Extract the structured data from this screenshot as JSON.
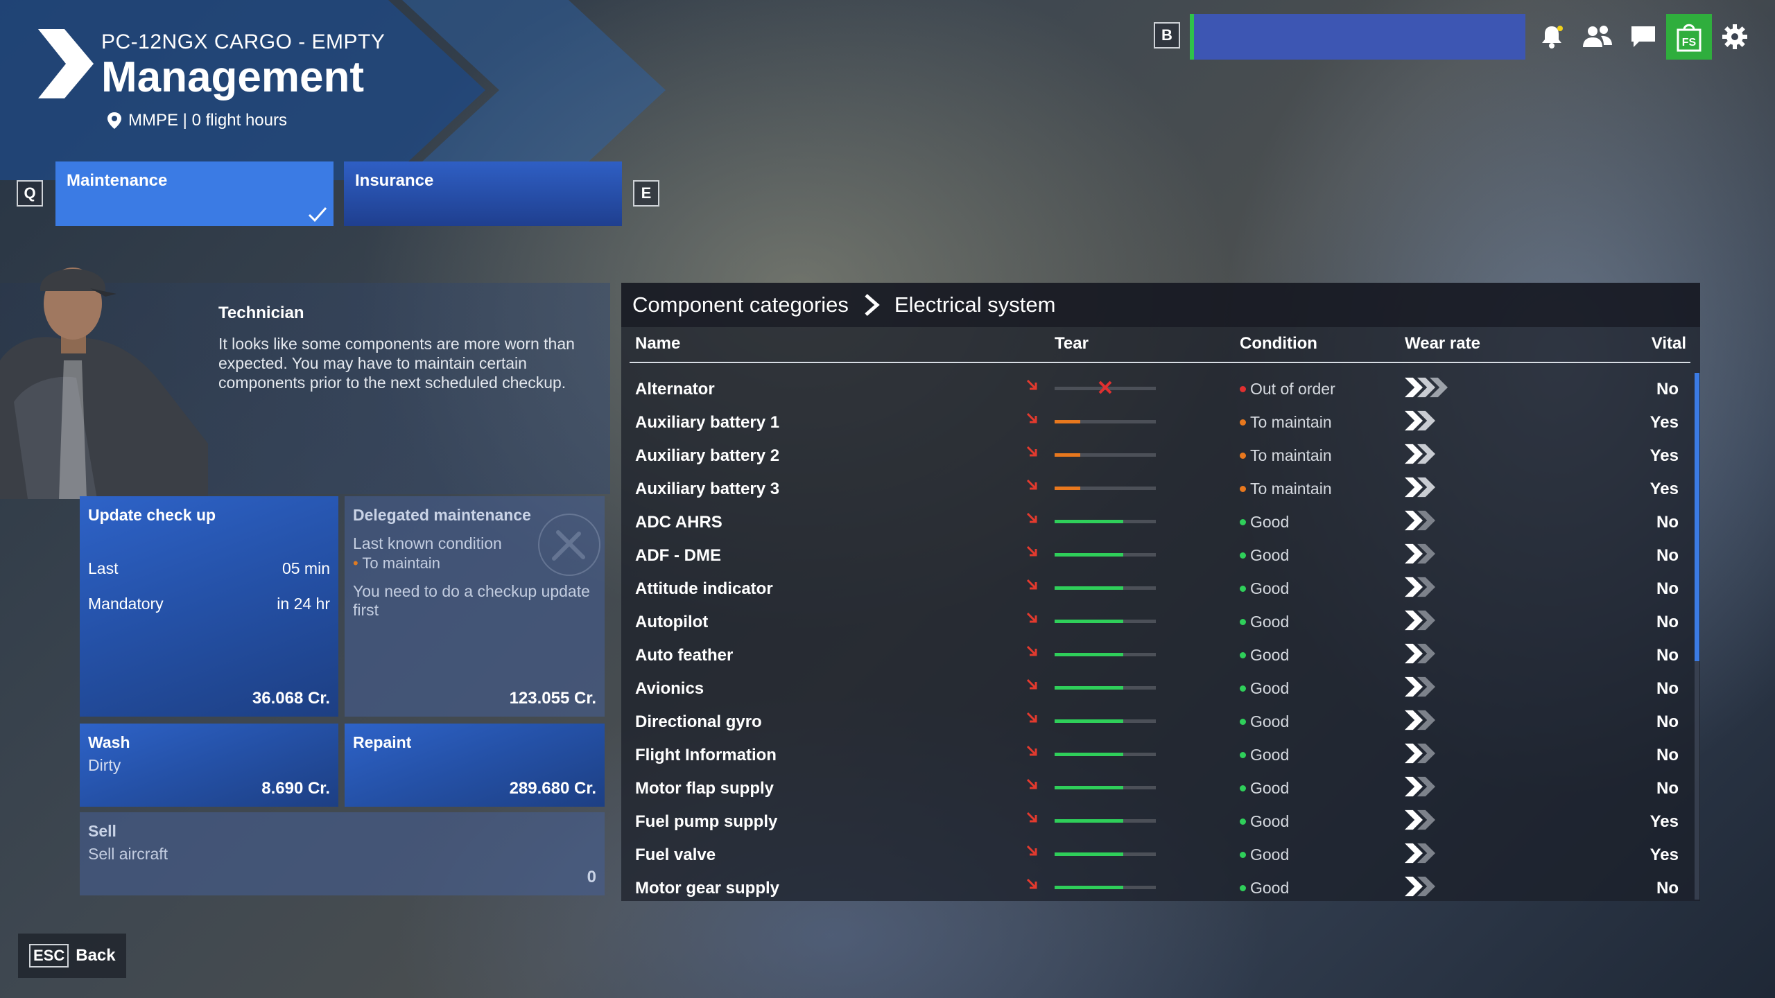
{
  "header": {
    "aircraft": "PC-12NGX CARGO - EMPTY",
    "title": "Management",
    "location": "MMPE | 0 flight hours"
  },
  "topbar": {
    "profile_key": "B",
    "icons": [
      "notification-bell-icon",
      "friends-icon",
      "chat-icon",
      "marketplace-icon",
      "settings-icon"
    ],
    "accent": "#3d56b3",
    "status_color": "#2fc24a"
  },
  "tabs": {
    "prev_key": "Q",
    "next_key": "E",
    "items": [
      {
        "label": "Maintenance",
        "active": true
      },
      {
        "label": "Insurance",
        "active": false
      }
    ]
  },
  "technician": {
    "name": "Technician",
    "message": "It looks like some components are more worn than expected. You may have to maintain certain components prior to the next scheduled checkup."
  },
  "cards": {
    "checkup": {
      "title": "Update check up",
      "last_label": "Last",
      "last_value": "05 min",
      "mandatory_label": "Mandatory",
      "mandatory_value": "in 24 hr",
      "price": "36.068 Cr."
    },
    "delegated": {
      "title": "Delegated maintenance",
      "condition_label": "Last known condition",
      "condition_value": "To maintain",
      "note": "You need to do a checkup update first",
      "price": "123.055 Cr."
    },
    "wash": {
      "title": "Wash",
      "status": "Dirty",
      "price": "8.690 Cr."
    },
    "repaint": {
      "title": "Repaint",
      "price": "289.680 Cr."
    },
    "sell": {
      "title": "Sell",
      "sub": "Sell aircraft",
      "price": "0"
    }
  },
  "components": {
    "breadcrumb_root": "Component categories",
    "breadcrumb_current": "Electrical system",
    "columns": {
      "name": "Name",
      "tear": "Tear",
      "condition": "Condition",
      "wear_rate": "Wear rate",
      "vital": "Vital"
    },
    "rows": [
      {
        "name": "Alternator",
        "tear": 0,
        "tear_color": "#e03030",
        "failed": true,
        "condition": "Out of order",
        "cond_color": "#e03030",
        "wear": 3,
        "vital": "No"
      },
      {
        "name": "Auxiliary battery 1",
        "tear": 0.25,
        "tear_color": "#e8781e",
        "failed": false,
        "condition": "To maintain",
        "cond_color": "#e8781e",
        "wear": 2,
        "vital": "Yes"
      },
      {
        "name": "Auxiliary battery 2",
        "tear": 0.25,
        "tear_color": "#e8781e",
        "failed": false,
        "condition": "To maintain",
        "cond_color": "#e8781e",
        "wear": 2,
        "vital": "Yes"
      },
      {
        "name": "Auxiliary battery 3",
        "tear": 0.25,
        "tear_color": "#e8781e",
        "failed": false,
        "condition": "To maintain",
        "cond_color": "#e8781e",
        "wear": 2,
        "vital": "Yes"
      },
      {
        "name": "ADC AHRS",
        "tear": 0.68,
        "tear_color": "#2fcf5a",
        "failed": false,
        "condition": "Good",
        "cond_color": "#2fcf5a",
        "wear": 1,
        "vital": "No"
      },
      {
        "name": "ADF - DME",
        "tear": 0.68,
        "tear_color": "#2fcf5a",
        "failed": false,
        "condition": "Good",
        "cond_color": "#2fcf5a",
        "wear": 1,
        "vital": "No"
      },
      {
        "name": "Attitude indicator",
        "tear": 0.68,
        "tear_color": "#2fcf5a",
        "failed": false,
        "condition": "Good",
        "cond_color": "#2fcf5a",
        "wear": 1,
        "vital": "No"
      },
      {
        "name": "Autopilot",
        "tear": 0.68,
        "tear_color": "#2fcf5a",
        "failed": false,
        "condition": "Good",
        "cond_color": "#2fcf5a",
        "wear": 1,
        "vital": "No"
      },
      {
        "name": "Auto feather",
        "tear": 0.68,
        "tear_color": "#2fcf5a",
        "failed": false,
        "condition": "Good",
        "cond_color": "#2fcf5a",
        "wear": 1,
        "vital": "No"
      },
      {
        "name": "Avionics",
        "tear": 0.68,
        "tear_color": "#2fcf5a",
        "failed": false,
        "condition": "Good",
        "cond_color": "#2fcf5a",
        "wear": 1,
        "vital": "No"
      },
      {
        "name": "Directional gyro",
        "tear": 0.68,
        "tear_color": "#2fcf5a",
        "failed": false,
        "condition": "Good",
        "cond_color": "#2fcf5a",
        "wear": 1,
        "vital": "No"
      },
      {
        "name": "Flight Information",
        "tear": 0.68,
        "tear_color": "#2fcf5a",
        "failed": false,
        "condition": "Good",
        "cond_color": "#2fcf5a",
        "wear": 1,
        "vital": "No"
      },
      {
        "name": "Motor flap supply",
        "tear": 0.68,
        "tear_color": "#2fcf5a",
        "failed": false,
        "condition": "Good",
        "cond_color": "#2fcf5a",
        "wear": 1,
        "vital": "No"
      },
      {
        "name": "Fuel pump supply",
        "tear": 0.68,
        "tear_color": "#2fcf5a",
        "failed": false,
        "condition": "Good",
        "cond_color": "#2fcf5a",
        "wear": 1,
        "vital": "Yes"
      },
      {
        "name": "Fuel valve",
        "tear": 0.68,
        "tear_color": "#2fcf5a",
        "failed": false,
        "condition": "Good",
        "cond_color": "#2fcf5a",
        "wear": 1,
        "vital": "Yes"
      },
      {
        "name": "Motor gear supply",
        "tear": 0.68,
        "tear_color": "#2fcf5a",
        "failed": false,
        "condition": "Good",
        "cond_color": "#2fcf5a",
        "wear": 1,
        "vital": "No"
      }
    ]
  },
  "footer": {
    "back_key": "ESC",
    "back_label": "Back"
  }
}
